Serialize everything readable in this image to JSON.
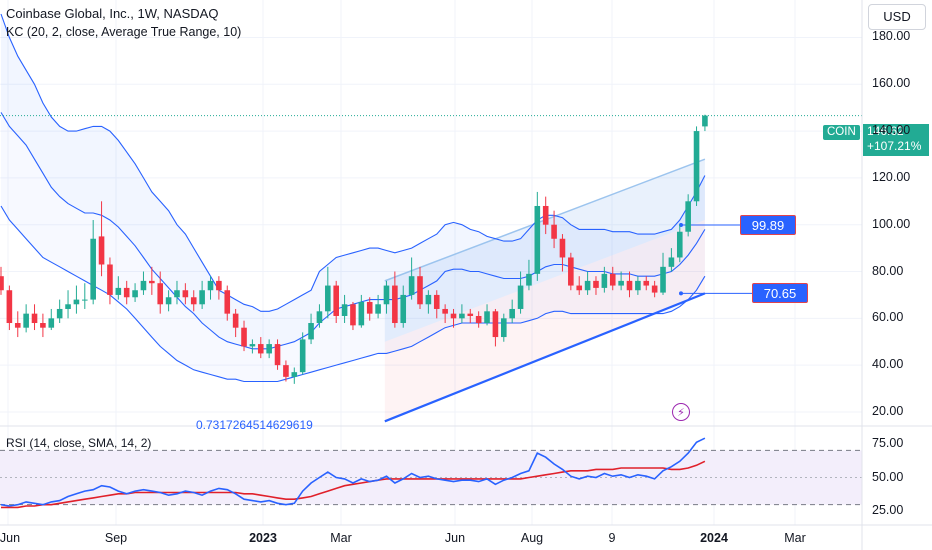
{
  "header": {
    "title": "Coinbase Global, Inc., 1W, NASDAQ",
    "indicator": "KC (20, 2, close, Average True Range, 10)",
    "rsi_label": "RSI (14, close, SMA, 14, 2)",
    "currency": "USD"
  },
  "annotations": {
    "fib_value": "0.7317264514629619",
    "ticker": "COIN",
    "last_price": "146.62",
    "change_pct": "+107.21%",
    "upper_callout": "99.89",
    "lower_callout": "70.65"
  },
  "colors": {
    "up": "#22ab94",
    "down": "#f23645",
    "kc_band": "#2962ff",
    "trendline": "#2962ff",
    "rsi_line": "#2962ff",
    "rsi_sma": "#e0202a",
    "rsi_band": "#f3eefb"
  },
  "chart_data": {
    "type": "candlestick",
    "title": "Coinbase Global, Inc., 1W, NASDAQ",
    "price_axis": {
      "ticks": [
        "20.00",
        "40.00",
        "60.00",
        "80.00",
        "100.00",
        "120.00",
        "140.00",
        "160.00",
        "180.00"
      ],
      "range": [
        14,
        196
      ]
    },
    "time_axis": {
      "ticks": [
        "Jun",
        "Sep",
        "2023",
        "Mar",
        "Jun",
        "Aug",
        "9",
        "2024",
        "Mar"
      ],
      "bold": [
        "2023",
        "2024"
      ]
    },
    "candles": [
      [
        78,
        72,
        82,
        70
      ],
      [
        72,
        58,
        74,
        55
      ],
      [
        58,
        56,
        63,
        52
      ],
      [
        56,
        62,
        66,
        54
      ],
      [
        62,
        58,
        66,
        55
      ],
      [
        58,
        56,
        62,
        52
      ],
      [
        56,
        60,
        64,
        55
      ],
      [
        60,
        64,
        68,
        58
      ],
      [
        64,
        66,
        72,
        60
      ],
      [
        66,
        68,
        74,
        62
      ],
      [
        68,
        68,
        75,
        64
      ],
      [
        68,
        94,
        102,
        66
      ],
      [
        95,
        83,
        110,
        78
      ],
      [
        83,
        70,
        86,
        66
      ],
      [
        70,
        73,
        78,
        68
      ],
      [
        73,
        69,
        76,
        66
      ],
      [
        69,
        72,
        75,
        67
      ],
      [
        72,
        76,
        80,
        70
      ],
      [
        76,
        75,
        82,
        70
      ],
      [
        75,
        66,
        80,
        62
      ],
      [
        66,
        69,
        72,
        63
      ],
      [
        69,
        72,
        76,
        66
      ],
      [
        72,
        69,
        75,
        66
      ],
      [
        69,
        66,
        72,
        63
      ],
      [
        66,
        72,
        76,
        64
      ],
      [
        72,
        76,
        78,
        68
      ],
      [
        76,
        72,
        78,
        68
      ],
      [
        72,
        62,
        74,
        59
      ],
      [
        62,
        56,
        64,
        52
      ],
      [
        56,
        48,
        59,
        46
      ],
      [
        48,
        49,
        51,
        45
      ],
      [
        49,
        45,
        52,
        43
      ],
      [
        45,
        49,
        51,
        43
      ],
      [
        49,
        40,
        51,
        38
      ],
      [
        40,
        35,
        42,
        33
      ],
      [
        35,
        37,
        39,
        32
      ],
      [
        37,
        51,
        54,
        36
      ],
      [
        51,
        58,
        62,
        49
      ],
      [
        58,
        63,
        66,
        56
      ],
      [
        63,
        74,
        82,
        60
      ],
      [
        74,
        61,
        76,
        58
      ],
      [
        61,
        66,
        70,
        58
      ],
      [
        66,
        57,
        67,
        55
      ],
      [
        57,
        67,
        70,
        56
      ],
      [
        67,
        62,
        69,
        59
      ],
      [
        62,
        66,
        70,
        60
      ],
      [
        66,
        74,
        76,
        62
      ],
      [
        74,
        58,
        80,
        56
      ],
      [
        58,
        70,
        74,
        56
      ],
      [
        70,
        78,
        86,
        68
      ],
      [
        78,
        66,
        82,
        64
      ],
      [
        66,
        70,
        72,
        62
      ],
      [
        70,
        64,
        72,
        60
      ],
      [
        64,
        62,
        66,
        58
      ],
      [
        62,
        60,
        64,
        56
      ],
      [
        60,
        62,
        66,
        58
      ],
      [
        62,
        61,
        64,
        58
      ],
      [
        61,
        58,
        63,
        56
      ],
      [
        58,
        63,
        66,
        57
      ],
      [
        63,
        52,
        64,
        48
      ],
      [
        52,
        60,
        62,
        50
      ],
      [
        60,
        64,
        68,
        58
      ],
      [
        64,
        74,
        80,
        62
      ],
      [
        74,
        79,
        85,
        72
      ],
      [
        79,
        108,
        114,
        76
      ],
      [
        108,
        100,
        112,
        96
      ],
      [
        100,
        94,
        106,
        90
      ],
      [
        94,
        86,
        96,
        80
      ],
      [
        86,
        74,
        88,
        72
      ],
      [
        74,
        72,
        78,
        70
      ],
      [
        72,
        76,
        80,
        70
      ],
      [
        76,
        73,
        78,
        70
      ],
      [
        73,
        79,
        82,
        71
      ],
      [
        79,
        74,
        82,
        72
      ],
      [
        74,
        76,
        80,
        72
      ],
      [
        76,
        72,
        80,
        69
      ],
      [
        72,
        76,
        78,
        70
      ],
      [
        76,
        74,
        78,
        72
      ],
      [
        74,
        71,
        76,
        69
      ],
      [
        71,
        82,
        88,
        70
      ],
      [
        82,
        86,
        90,
        80
      ],
      [
        86,
        97,
        100,
        84
      ],
      [
        97,
        110,
        113,
        95
      ],
      [
        110,
        140,
        142,
        108
      ],
      [
        142,
        146.62,
        147,
        140
      ]
    ],
    "keltner_upper": [
      190,
      180,
      172,
      166,
      160,
      152,
      146,
      142,
      140,
      140,
      141,
      142,
      142,
      140,
      136,
      131,
      126,
      120,
      114,
      110,
      106,
      100,
      96,
      90,
      84,
      78,
      72,
      70,
      68,
      66,
      65,
      63,
      63,
      64,
      66,
      68,
      70,
      72,
      80,
      83,
      86,
      87,
      88,
      89,
      90,
      90,
      89,
      88,
      89,
      90,
      92,
      94,
      96,
      100,
      101,
      100,
      98,
      97,
      95,
      94,
      93,
      93,
      94,
      98,
      102,
      104,
      104,
      103,
      100,
      98,
      98,
      98,
      98,
      97,
      97,
      97,
      96,
      96,
      96,
      97,
      98,
      102,
      108,
      114,
      121
    ],
    "keltner_mid": [
      148,
      142,
      138,
      134,
      128,
      122,
      116,
      112,
      109,
      107,
      105,
      105,
      104,
      102,
      99,
      95,
      91,
      86,
      81,
      77,
      73,
      69,
      65,
      62,
      58,
      55,
      52,
      50,
      49,
      48,
      47,
      47,
      47,
      48,
      49,
      50,
      52,
      54,
      58,
      61,
      64,
      65,
      66,
      67,
      68,
      68,
      68,
      68,
      69,
      70,
      72,
      74,
      76,
      80,
      81,
      81,
      80,
      80,
      79,
      78,
      77,
      77,
      77,
      78,
      80,
      82,
      83,
      83,
      82,
      81,
      80,
      80,
      80,
      79,
      79,
      79,
      78,
      78,
      78,
      79,
      80,
      83,
      87,
      92,
      98
    ],
    "keltner_lower": [
      108,
      102,
      98,
      94,
      90,
      86,
      84,
      82,
      80,
      78,
      76,
      74,
      72,
      70,
      67,
      64,
      60,
      56,
      52,
      48,
      45,
      42,
      40,
      38,
      37,
      36,
      35,
      34,
      34,
      33,
      33,
      33,
      33,
      33,
      34,
      35,
      36,
      37,
      38,
      39,
      40,
      41,
      42,
      43,
      44,
      45,
      45,
      46,
      47,
      48,
      50,
      52,
      54,
      56,
      57,
      58,
      58,
      58,
      58,
      58,
      58,
      58,
      58,
      59,
      60,
      62,
      63,
      63,
      62,
      62,
      62,
      62,
      62,
      62,
      62,
      62,
      62,
      62,
      62,
      62,
      63,
      65,
      68,
      72,
      78
    ],
    "trendlines": {
      "upper_channel": [
        [
          45.8,
          76
        ],
        [
          84,
          128
        ]
      ],
      "lower_channel": [
        [
          45.8,
          16
        ],
        [
          84,
          70.65
        ]
      ],
      "callout_upper_value": 99.89,
      "callout_lower_value": 70.65
    },
    "rsi": {
      "axis_ticks": [
        "25.00",
        "50.00",
        "75.00"
      ],
      "range": [
        15,
        88
      ],
      "bands": [
        30,
        70
      ],
      "rsi": [
        30,
        29,
        30,
        32,
        31,
        30,
        32,
        33,
        36,
        38,
        40,
        41,
        44,
        43,
        40,
        38,
        40,
        41,
        40,
        39,
        37,
        38,
        40,
        39,
        37,
        40,
        42,
        41,
        38,
        34,
        33,
        32,
        33,
        31,
        30,
        31,
        40,
        46,
        50,
        54,
        50,
        49,
        46,
        49,
        47,
        48,
        51,
        46,
        49,
        53,
        50,
        51,
        49,
        48,
        47,
        48,
        48,
        47,
        49,
        45,
        48,
        50,
        53,
        55,
        68,
        65,
        60,
        56,
        51,
        49,
        51,
        50,
        53,
        51,
        52,
        50,
        52,
        51,
        49,
        55,
        58,
        62,
        68,
        76,
        79
      ],
      "sma": [
        28,
        28,
        28,
        29,
        29,
        30,
        30,
        31,
        32,
        33,
        34,
        35,
        36,
        37,
        38,
        38,
        39,
        39,
        39,
        39,
        39,
        39,
        39,
        39,
        39,
        39,
        39,
        39,
        39,
        38,
        38,
        37,
        36,
        35,
        34,
        34,
        35,
        36,
        38,
        40,
        42,
        44,
        45,
        46,
        47,
        48,
        49,
        49,
        49,
        49,
        49,
        49,
        49,
        49,
        49,
        49,
        49,
        49,
        49,
        49,
        49,
        49,
        49,
        50,
        51,
        52,
        53,
        54,
        55,
        55,
        55,
        56,
        56,
        56,
        57,
        57,
        57,
        57,
        57,
        57,
        56,
        56,
        57,
        59,
        62
      ]
    }
  }
}
